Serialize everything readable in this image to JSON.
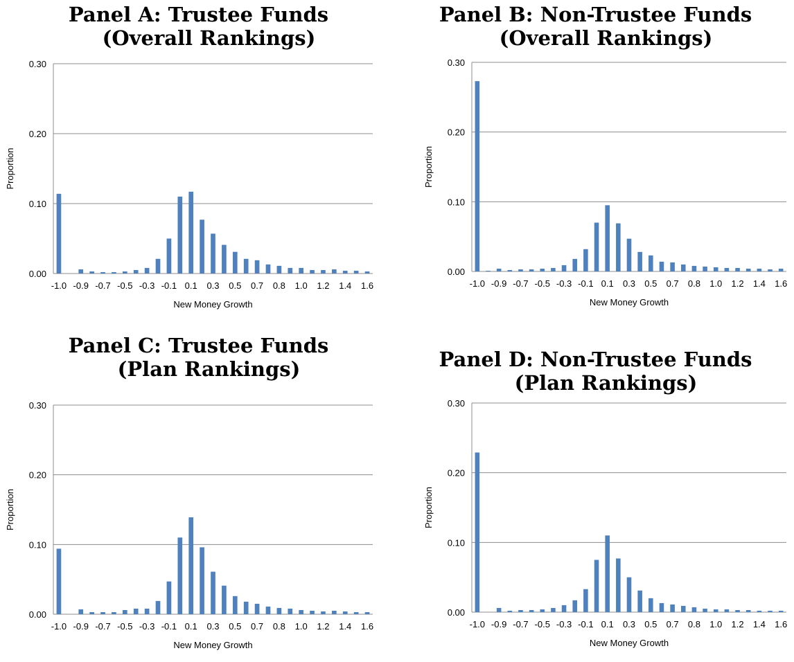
{
  "chart_data": [
    {
      "type": "bar",
      "title_line1": "Panel A: Trustee Funds",
      "title_line2": "(Overall Rankings)",
      "xlabel": "New Money Growth",
      "ylabel": "Proportion",
      "ylim": [
        0,
        0.3
      ],
      "y_ticks": [
        "0.00",
        "0.10",
        "0.20",
        "0.30"
      ],
      "x_tick_labels": [
        "-1.0",
        "-0.9",
        "-0.7",
        "-0.5",
        "-0.3",
        "-0.1",
        "0.1",
        "0.3",
        "0.5",
        "0.7",
        "0.8",
        "1.0",
        "1.2",
        "1.4",
        "1.6"
      ],
      "grid": true,
      "color": "#4f81bd",
      "values": [
        0.114,
        0.0,
        0.006,
        0.003,
        0.002,
        0.002,
        0.003,
        0.005,
        0.008,
        0.021,
        0.05,
        0.11,
        0.117,
        0.077,
        0.057,
        0.041,
        0.031,
        0.021,
        0.019,
        0.013,
        0.011,
        0.008,
        0.008,
        0.005,
        0.005,
        0.006,
        0.004,
        0.004,
        0.003
      ]
    },
    {
      "type": "bar",
      "title_line1": "Panel B: Non-Trustee Funds",
      "title_line2": "(Overall Rankings)",
      "xlabel": "New Money Growth",
      "ylabel": "Proportion",
      "ylim": [
        0,
        0.3
      ],
      "y_ticks": [
        "0.00",
        "0.10",
        "0.20",
        "0.30"
      ],
      "x_tick_labels": [
        "-1.0",
        "-0.9",
        "-0.7",
        "-0.5",
        "-0.3",
        "-0.1",
        "0.1",
        "0.3",
        "0.5",
        "0.7",
        "0.8",
        "1.0",
        "1.2",
        "1.4",
        "1.6"
      ],
      "grid": true,
      "color": "#4f81bd",
      "values": [
        0.273,
        0.001,
        0.004,
        0.002,
        0.003,
        0.003,
        0.004,
        0.005,
        0.009,
        0.018,
        0.032,
        0.07,
        0.095,
        0.069,
        0.047,
        0.028,
        0.023,
        0.014,
        0.013,
        0.01,
        0.008,
        0.007,
        0.006,
        0.005,
        0.005,
        0.004,
        0.004,
        0.003,
        0.004
      ]
    },
    {
      "type": "bar",
      "title_line1": "Panel C: Trustee Funds",
      "title_line2": "(Plan Rankings)",
      "xlabel": "New Money Growth",
      "ylabel": "Proportion",
      "ylim": [
        0,
        0.3
      ],
      "y_ticks": [
        "0.00",
        "0.10",
        "0.20",
        "0.30"
      ],
      "x_tick_labels": [
        "-1.0",
        "-0.9",
        "-0.7",
        "-0.5",
        "-0.3",
        "-0.1",
        "0.1",
        "0.3",
        "0.5",
        "0.7",
        "0.8",
        "1.0",
        "1.2",
        "1.4",
        "1.6"
      ],
      "grid": true,
      "color": "#4f81bd",
      "values": [
        0.094,
        0.0,
        0.007,
        0.003,
        0.003,
        0.003,
        0.006,
        0.008,
        0.008,
        0.019,
        0.047,
        0.11,
        0.139,
        0.096,
        0.061,
        0.041,
        0.026,
        0.018,
        0.015,
        0.011,
        0.009,
        0.008,
        0.006,
        0.005,
        0.004,
        0.005,
        0.004,
        0.003,
        0.003
      ]
    },
    {
      "type": "bar",
      "title_line1": "Panel D: Non-Trustee Funds",
      "title_line2": "(Plan Rankings)",
      "xlabel": "New Money Growth",
      "ylabel": "Proportion",
      "ylim": [
        0,
        0.3
      ],
      "y_ticks": [
        "0.00",
        "0.10",
        "0.20",
        "0.30"
      ],
      "x_tick_labels": [
        "-1.0",
        "-0.9",
        "-0.7",
        "-0.5",
        "-0.3",
        "-0.1",
        "0.1",
        "0.3",
        "0.5",
        "0.7",
        "0.8",
        "1.0",
        "1.2",
        "1.4",
        "1.6"
      ],
      "grid": true,
      "color": "#4f81bd",
      "values": [
        0.229,
        0.0,
        0.006,
        0.002,
        0.003,
        0.003,
        0.004,
        0.006,
        0.01,
        0.017,
        0.033,
        0.075,
        0.11,
        0.077,
        0.05,
        0.031,
        0.02,
        0.013,
        0.011,
        0.009,
        0.007,
        0.005,
        0.004,
        0.004,
        0.003,
        0.003,
        0.002,
        0.002,
        0.002
      ]
    }
  ]
}
